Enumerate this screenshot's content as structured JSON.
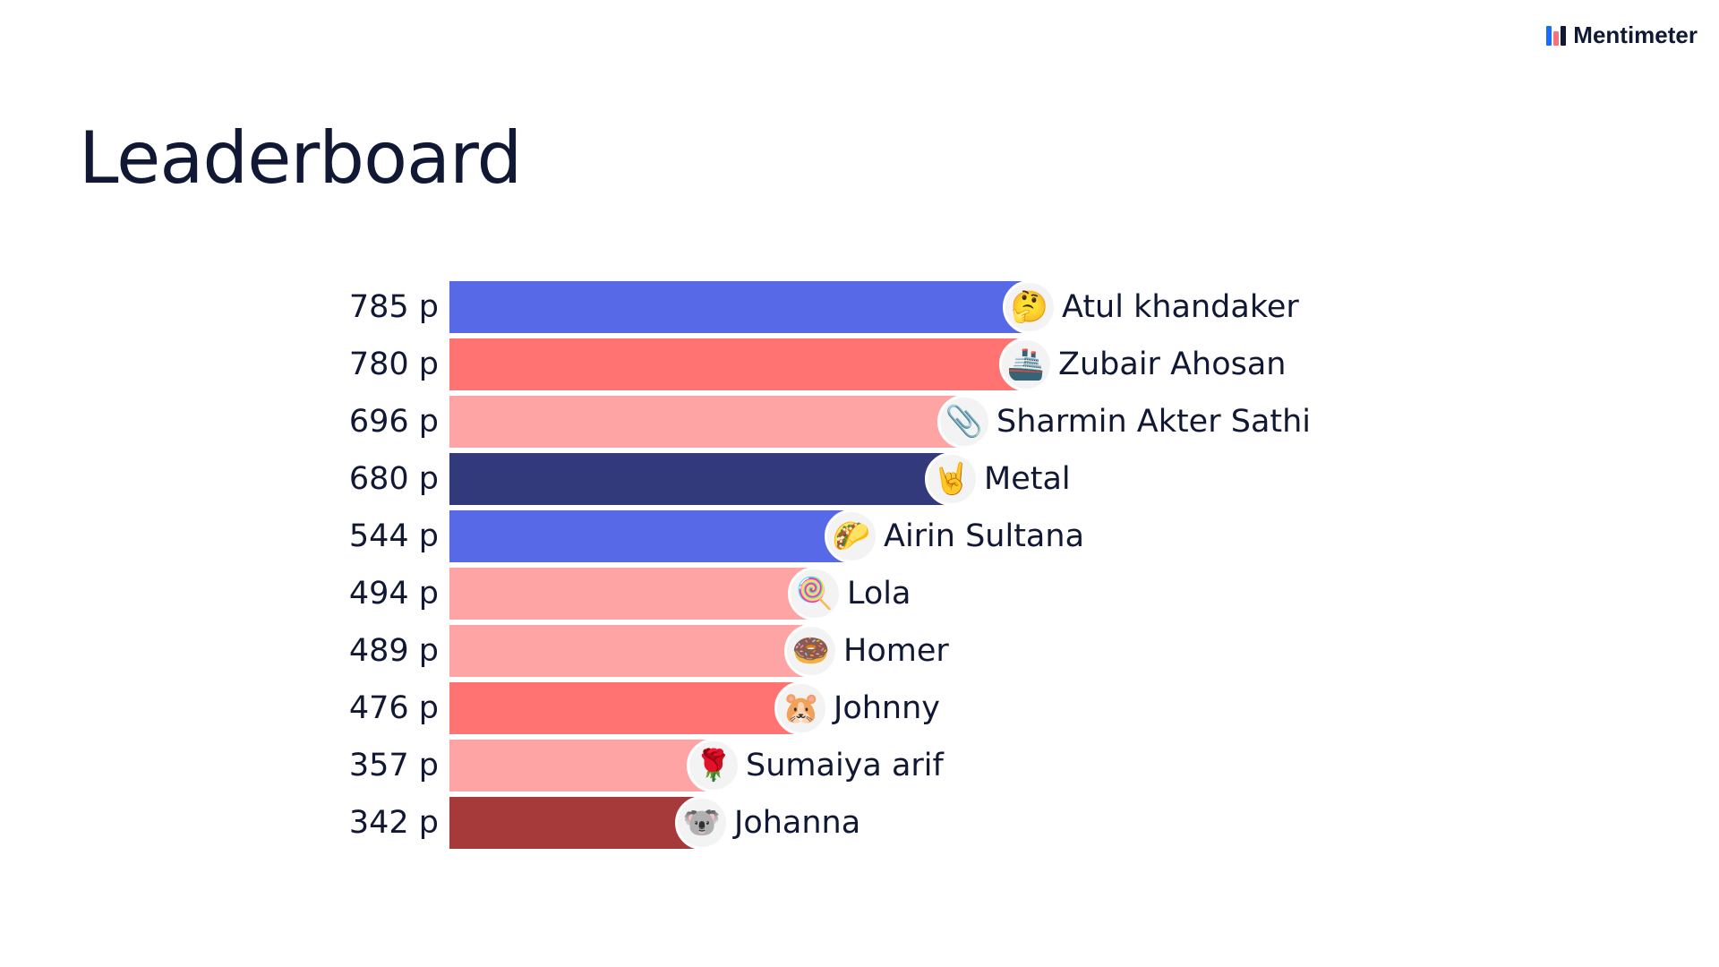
{
  "brand": {
    "name": "Mentimeter"
  },
  "title": "Leaderboard",
  "chart_data": {
    "type": "bar",
    "orientation": "horizontal",
    "title": "Leaderboard",
    "value_suffix": " p",
    "rows": [
      {
        "name": "Atul khandaker",
        "value": 785,
        "display": "785 p",
        "emoji": "🤔",
        "color": "#5769e7"
      },
      {
        "name": "Zubair Ahosan",
        "value": 780,
        "display": "780 p",
        "emoji": "🚢",
        "color": "#ff7373"
      },
      {
        "name": "Sharmin Akter Sathi",
        "value": 696,
        "display": "696 p",
        "emoji": "📎",
        "color": "#ffa4a4"
      },
      {
        "name": "Metal",
        "value": 680,
        "display": "680 p",
        "emoji": "🤘",
        "color": "#323a7b"
      },
      {
        "name": "Airin Sultana",
        "value": 544,
        "display": "544 p",
        "emoji": "🌮",
        "color": "#5769e7"
      },
      {
        "name": "Lola",
        "value": 494,
        "display": "494 p",
        "emoji": "🍭",
        "color": "#ffa4a4"
      },
      {
        "name": "Homer",
        "value": 489,
        "display": "489 p",
        "emoji": "🍩",
        "color": "#ffa4a4"
      },
      {
        "name": "Johnny",
        "value": 476,
        "display": "476 p",
        "emoji": "🐹",
        "color": "#ff7373"
      },
      {
        "name": "Sumaiya arif",
        "value": 357,
        "display": "357 p",
        "emoji": "🌹",
        "color": "#ffa4a4"
      },
      {
        "name": "Johanna",
        "value": 342,
        "display": "342 p",
        "emoji": "🐨",
        "color": "#a63a3a"
      }
    ],
    "xlim": [
      0,
      785
    ]
  }
}
